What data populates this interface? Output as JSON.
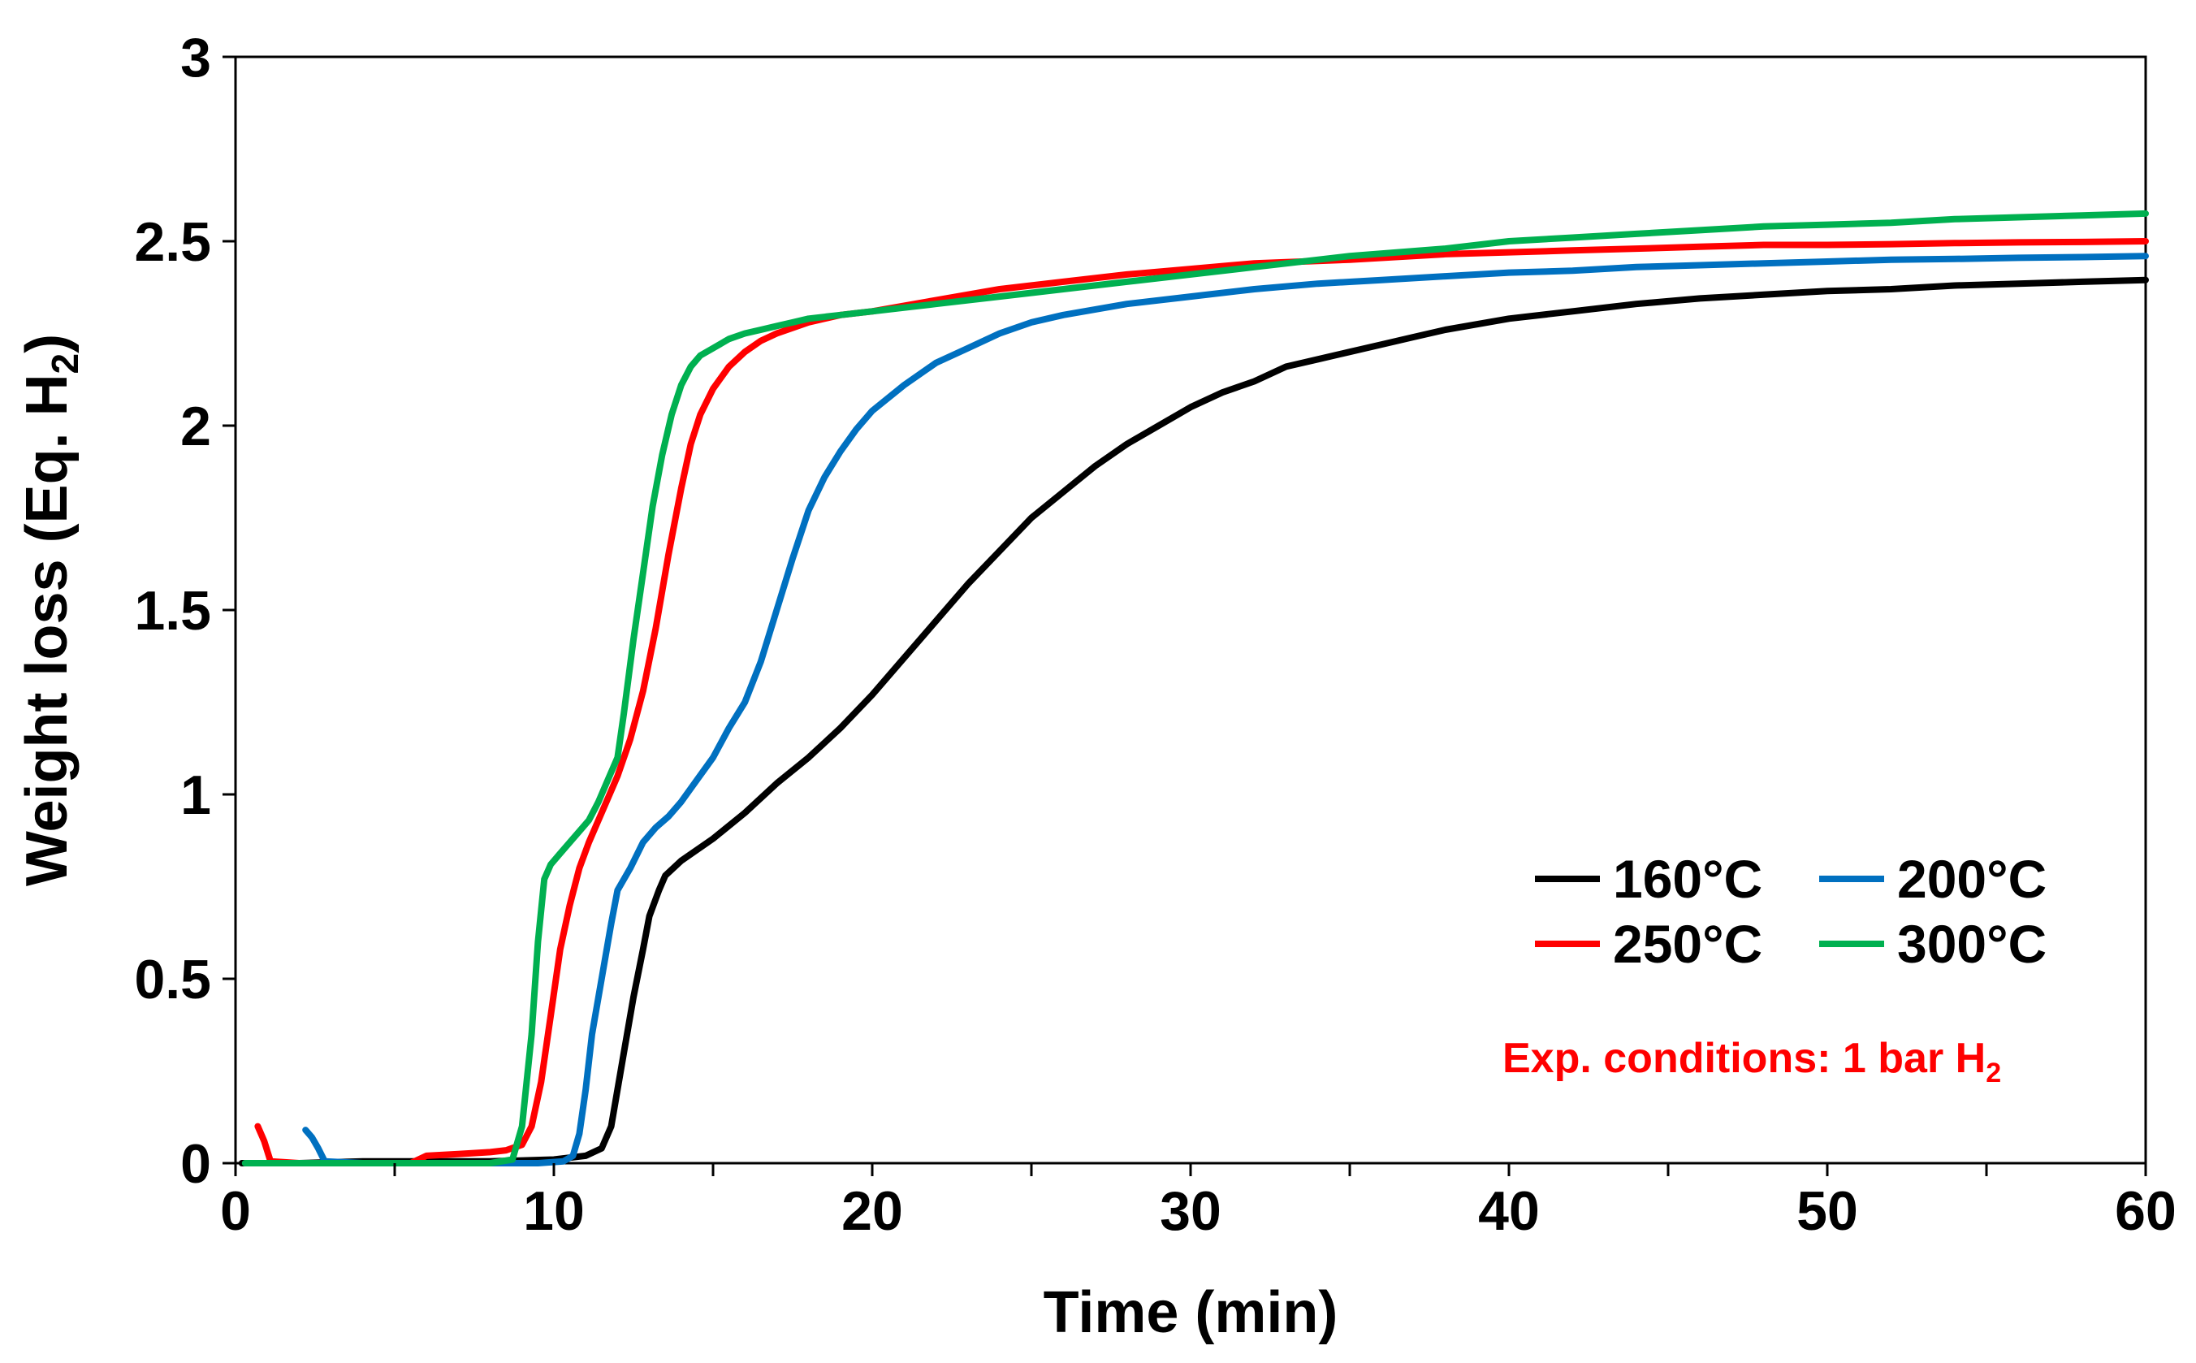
{
  "chart_data": {
    "type": "line",
    "title": "",
    "xlabel": "Time (min)",
    "ylabel_main": "Weight loss (Eq. H",
    "ylabel_sub": "2",
    "ylabel_close": ")",
    "xlim": [
      0,
      60
    ],
    "ylim": [
      0,
      3
    ],
    "x_ticks": [
      0,
      10,
      20,
      30,
      40,
      50,
      60
    ],
    "y_ticks": [
      0,
      0.5,
      1,
      1.5,
      2,
      2.5,
      3
    ],
    "x_tick_labels": [
      "0",
      "10",
      "20",
      "30",
      "40",
      "50",
      "60"
    ],
    "y_tick_labels": [
      "0",
      "0.5",
      "1",
      "1.5",
      "2",
      "2.5",
      "3"
    ],
    "x_minor_step": 5,
    "grid": false,
    "legend_position": "lower-right",
    "annotation": {
      "text": "Exp. conditions: 1 bar H",
      "sub": "2",
      "color": "#FF0000"
    },
    "series": [
      {
        "name": "160°C",
        "color": "#000000",
        "x": [
          0.2,
          2,
          4,
          6,
          8,
          10,
          11,
          11.5,
          11.8,
          12,
          12.2,
          12.5,
          12.8,
          13,
          13.3,
          13.5,
          14,
          15,
          16,
          17,
          18,
          19,
          20,
          21,
          22,
          23,
          24,
          25,
          26,
          27,
          28,
          29,
          30,
          31,
          32,
          33,
          34,
          35,
          36,
          37,
          38,
          40,
          42,
          44,
          46,
          48,
          50,
          52,
          54,
          56,
          58,
          60
        ],
        "y": [
          0,
          0,
          0.005,
          0.005,
          0.005,
          0.01,
          0.02,
          0.04,
          0.1,
          0.2,
          0.3,
          0.45,
          0.58,
          0.67,
          0.74,
          0.78,
          0.82,
          0.88,
          0.95,
          1.03,
          1.1,
          1.18,
          1.27,
          1.37,
          1.47,
          1.57,
          1.66,
          1.75,
          1.82,
          1.89,
          1.95,
          2.0,
          2.05,
          2.09,
          2.12,
          2.16,
          2.18,
          2.2,
          2.22,
          2.24,
          2.26,
          2.29,
          2.31,
          2.33,
          2.345,
          2.355,
          2.365,
          2.37,
          2.38,
          2.385,
          2.39,
          2.395
        ]
      },
      {
        "name": "200°C",
        "color": "#0070C0",
        "x": [
          2.2,
          2.4,
          2.6,
          2.8,
          4,
          6,
          8,
          9.5,
          10.3,
          10.6,
          10.8,
          11,
          11.2,
          11.5,
          11.8,
          12,
          12.4,
          12.8,
          13.2,
          13.6,
          14,
          14.5,
          15,
          15.5,
          16,
          16.5,
          17,
          17.5,
          18,
          18.5,
          19,
          19.5,
          20,
          21,
          22,
          23,
          24,
          25,
          26,
          28,
          30,
          32,
          34,
          36,
          38,
          40,
          42,
          44,
          46,
          48,
          50,
          52,
          54,
          56,
          58,
          60
        ],
        "y": [
          0.09,
          0.07,
          0.04,
          0.005,
          0,
          0,
          0,
          0,
          0.005,
          0.02,
          0.08,
          0.2,
          0.35,
          0.5,
          0.65,
          0.74,
          0.8,
          0.87,
          0.91,
          0.94,
          0.98,
          1.04,
          1.1,
          1.18,
          1.25,
          1.36,
          1.5,
          1.64,
          1.77,
          1.86,
          1.93,
          1.99,
          2.04,
          2.11,
          2.17,
          2.21,
          2.25,
          2.28,
          2.3,
          2.33,
          2.35,
          2.37,
          2.385,
          2.395,
          2.405,
          2.415,
          2.42,
          2.43,
          2.435,
          2.44,
          2.445,
          2.45,
          2.452,
          2.455,
          2.457,
          2.46
        ]
      },
      {
        "name": "250°C",
        "color": "#FF0000",
        "x": [
          0.7,
          0.9,
          1.1,
          2,
          4,
          5.5,
          6,
          7,
          8,
          8.5,
          9,
          9.3,
          9.6,
          9.9,
          10.2,
          10.5,
          10.8,
          11.1,
          11.5,
          12,
          12.4,
          12.8,
          13.2,
          13.6,
          14,
          14.3,
          14.6,
          15,
          15.5,
          16,
          16.5,
          17,
          18,
          19,
          20,
          22,
          24,
          26,
          28,
          30,
          32,
          35,
          38,
          40,
          42,
          44,
          46,
          48,
          50,
          52,
          54,
          56,
          58,
          60
        ],
        "y": [
          0.1,
          0.06,
          0.005,
          0,
          0,
          0,
          0.02,
          0.025,
          0.03,
          0.035,
          0.05,
          0.1,
          0.22,
          0.4,
          0.58,
          0.7,
          0.8,
          0.87,
          0.95,
          1.05,
          1.15,
          1.28,
          1.45,
          1.65,
          1.83,
          1.95,
          2.03,
          2.1,
          2.16,
          2.2,
          2.23,
          2.25,
          2.28,
          2.3,
          2.31,
          2.34,
          2.37,
          2.39,
          2.41,
          2.425,
          2.44,
          2.45,
          2.465,
          2.47,
          2.475,
          2.48,
          2.485,
          2.49,
          2.49,
          2.492,
          2.495,
          2.497,
          2.498,
          2.5
        ]
      },
      {
        "name": "300°C",
        "color": "#00B050",
        "x": [
          0.3,
          2,
          4,
          6,
          8,
          8.7,
          9,
          9.3,
          9.5,
          9.7,
          9.9,
          10.2,
          10.5,
          10.8,
          11.1,
          11.4,
          11.7,
          12,
          12.2,
          12.5,
          12.8,
          13.1,
          13.4,
          13.7,
          14,
          14.3,
          14.6,
          15,
          15.5,
          16,
          16.5,
          17,
          17.5,
          18,
          19,
          20,
          22,
          24,
          26,
          28,
          30,
          32,
          35,
          38,
          40,
          42,
          44,
          46,
          48,
          50,
          52,
          54,
          56,
          58,
          60
        ],
        "y": [
          0,
          0,
          0,
          0,
          0,
          0.01,
          0.1,
          0.35,
          0.6,
          0.77,
          0.81,
          0.84,
          0.87,
          0.9,
          0.93,
          0.98,
          1.04,
          1.1,
          1.22,
          1.42,
          1.6,
          1.78,
          1.92,
          2.03,
          2.11,
          2.16,
          2.19,
          2.21,
          2.235,
          2.25,
          2.26,
          2.27,
          2.28,
          2.29,
          2.3,
          2.31,
          2.33,
          2.35,
          2.37,
          2.39,
          2.41,
          2.43,
          2.46,
          2.48,
          2.5,
          2.51,
          2.52,
          2.53,
          2.54,
          2.545,
          2.55,
          2.56,
          2.565,
          2.57,
          2.575
        ]
      }
    ]
  }
}
